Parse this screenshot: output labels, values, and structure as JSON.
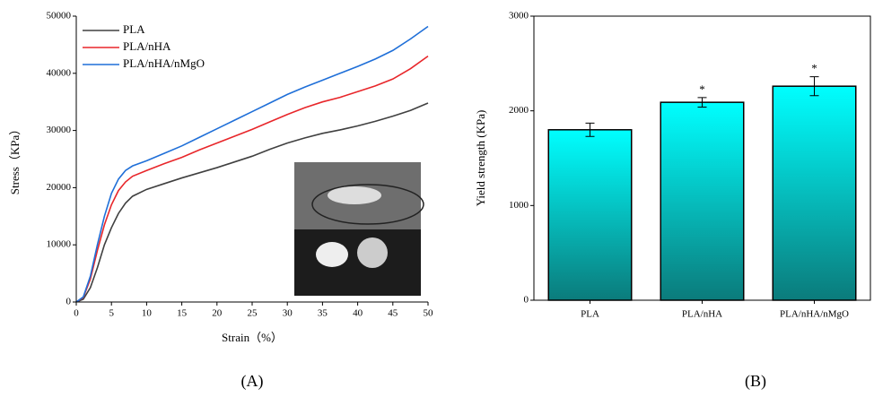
{
  "chart_data": [
    {
      "type": "line",
      "panel_label": "(A)",
      "xlabel": "Strain（%）",
      "ylabel": "Stress（KPa）",
      "x": [
        0,
        1,
        2,
        3,
        4,
        5,
        6,
        7,
        8,
        10,
        12.5,
        15,
        17.5,
        20,
        22.5,
        25,
        27.5,
        30,
        32.5,
        35,
        37.5,
        40,
        42.5,
        45,
        47.5,
        50
      ],
      "series": [
        {
          "name": "PLA",
          "color": "#404040",
          "values": [
            0,
            500,
            2500,
            6000,
            10000,
            13000,
            15500,
            17300,
            18500,
            19700,
            20700,
            21700,
            22600,
            23500,
            24500,
            25500,
            26700,
            27800,
            28700,
            29500,
            30100,
            30800,
            31600,
            32500,
            33500,
            34800
          ]
        },
        {
          "name": "PLA/nHA",
          "color": "#e8262a",
          "values": [
            0,
            800,
            4000,
            9000,
            13500,
            17000,
            19500,
            21000,
            22000,
            23000,
            24200,
            25300,
            26600,
            27800,
            29000,
            30200,
            31500,
            32800,
            34000,
            35000,
            35800,
            36800,
            37800,
            39000,
            40800,
            43000
          ]
        },
        {
          "name": "PLA/nHA/nMgO",
          "color": "#1f6fd8",
          "values": [
            0,
            900,
            4500,
            10000,
            15000,
            19000,
            21500,
            23000,
            23800,
            24700,
            26000,
            27300,
            28800,
            30300,
            31800,
            33300,
            34800,
            36300,
            37600,
            38800,
            40000,
            41200,
            42500,
            44000,
            46000,
            48200
          ]
        }
      ],
      "xlim": [
        0,
        50
      ],
      "xticks": [
        0,
        5,
        10,
        15,
        20,
        25,
        30,
        35,
        40,
        45,
        50
      ],
      "ylim": [
        0,
        50000
      ],
      "yticks": [
        0,
        10000,
        20000,
        30000,
        40000,
        50000
      ],
      "legend": "upper left"
    },
    {
      "type": "bar",
      "panel_label": "(B)",
      "ylabel": "Yield strength (KPa)",
      "categories": [
        "PLA",
        "PLA/nHA",
        "PLA/nHA/nMgO"
      ],
      "values": [
        1800,
        2090,
        2260
      ],
      "errors": [
        70,
        50,
        100
      ],
      "value_annotations": [
        null,
        "*",
        "*"
      ],
      "color": "#00ffff",
      "color_bottom": "#0b7b7b",
      "ylim": [
        0,
        3000
      ],
      "yticks": [
        0,
        1000,
        2000,
        3000
      ]
    }
  ]
}
